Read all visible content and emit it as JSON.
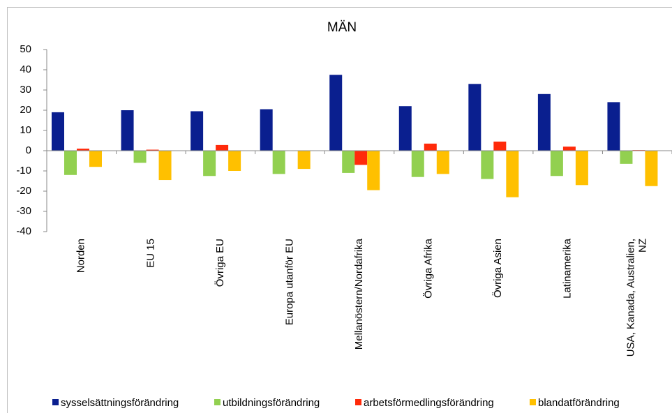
{
  "chart_data": {
    "type": "bar",
    "title": "MÄN",
    "categories": [
      "Norden",
      "EU 15",
      "Övriga EU",
      "Europa utanför EU",
      "Mellanöstern/Nordafrika",
      "Övriga Afrika",
      "Övriga Asien",
      "Latinamerika",
      "USA, Kanada, Australien,\nNZ"
    ],
    "series": [
      {
        "name": "sysselsättningsförändring",
        "color": "#0a1f8f",
        "values": [
          19,
          20,
          19.5,
          20.5,
          37.5,
          22,
          33,
          28,
          24
        ]
      },
      {
        "name": "utbildningsförändring",
        "color": "#92d050",
        "values": [
          -12,
          -6,
          -12.5,
          -11.5,
          -11,
          -13,
          -14,
          -12.5,
          -6.5
        ]
      },
      {
        "name": "arbetsförmedlingsförändring",
        "color": "#ff2a0a",
        "values": [
          1,
          0.5,
          2.8,
          0,
          -7,
          3.5,
          4.5,
          2,
          0.3
        ]
      },
      {
        "name": "blandatförändring",
        "color": "#ffc000",
        "values": [
          -8,
          -14.5,
          -10,
          -9,
          -19.5,
          -11.5,
          -23,
          -17,
          -17.5
        ]
      }
    ],
    "ylim": [
      -40,
      50
    ],
    "yticks": [
      -40,
      -30,
      -20,
      -10,
      0,
      10,
      20,
      30,
      40,
      50
    ],
    "legend": "bottom"
  }
}
